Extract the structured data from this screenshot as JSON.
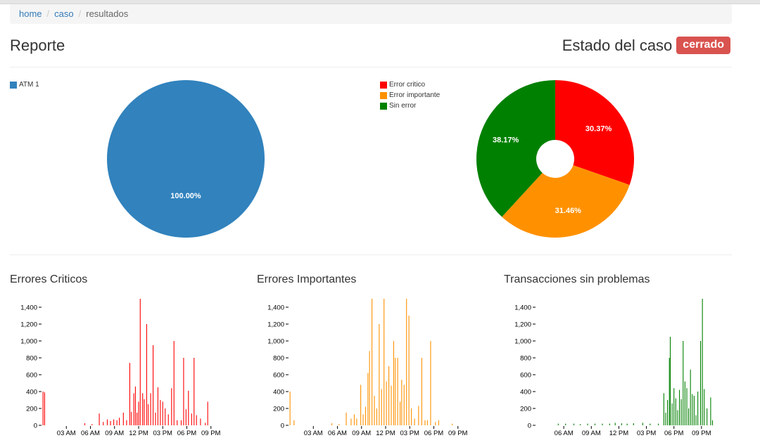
{
  "breadcrumb": {
    "home": "home",
    "caso": "caso",
    "current": "resultados",
    "separator": "/"
  },
  "header": {
    "title": "Reporte",
    "estado_label": "Estado del caso",
    "estado_value": "cerrado",
    "estado_color": "#d9534f"
  },
  "pie_atm": {
    "legend": [
      {
        "label": "ATM 1",
        "color": "#3182bd"
      }
    ]
  },
  "donut_errores": {
    "legend": [
      {
        "label": "Error critico",
        "color": "#ff0000"
      },
      {
        "label": "Error importante",
        "color": "#ff9100"
      },
      {
        "label": "Sin error",
        "color": "#008000"
      }
    ]
  },
  "sections": {
    "criticos": "Errores Criticos",
    "importantes": "Errores Importantes",
    "sin_problemas": "Transacciones sin problemas"
  },
  "chart_data": [
    {
      "type": "pie",
      "slices": [
        {
          "name": "ATM 1",
          "value": 100.0,
          "label": "100.00%",
          "color": "#3182bd"
        }
      ]
    },
    {
      "type": "pie",
      "donut": true,
      "slices": [
        {
          "name": "Error critico",
          "value": 30.37,
          "label": "30.37%",
          "color": "#ff0000"
        },
        {
          "name": "Error importante",
          "value": 31.46,
          "label": "31.46%",
          "color": "#ff9100"
        },
        {
          "name": "Sin error",
          "value": 38.17,
          "label": "38.17%",
          "color": "#008000"
        }
      ]
    },
    {
      "type": "bar",
      "title": "Errores Criticos",
      "color": "#ff0000",
      "ylim": [
        0,
        1400
      ],
      "yticks": [
        "0",
        "200",
        "400",
        "600",
        "800",
        "1,000",
        "1,200",
        "1,400"
      ],
      "xticks": [
        "03 AM",
        "06 AM",
        "09 AM",
        "12 PM",
        "03 PM",
        "06 PM",
        "09 PM"
      ],
      "xtick_hours": [
        3,
        6,
        9,
        12,
        15,
        18,
        21
      ],
      "xlim_hours": [
        0,
        24
      ],
      "points": [
        [
          0.1,
          400
        ],
        [
          0.3,
          390
        ],
        [
          5.3,
          25
        ],
        [
          6.2,
          15
        ],
        [
          7.1,
          140
        ],
        [
          7.6,
          40
        ],
        [
          8.1,
          70
        ],
        [
          8.5,
          50
        ],
        [
          8.9,
          70
        ],
        [
          9.3,
          60
        ],
        [
          9.6,
          90
        ],
        [
          10.1,
          150
        ],
        [
          10.5,
          60
        ],
        [
          10.9,
          740
        ],
        [
          11.1,
          160
        ],
        [
          11.4,
          380
        ],
        [
          11.6,
          460
        ],
        [
          11.8,
          150
        ],
        [
          12.0,
          280
        ],
        [
          12.2,
          1500
        ],
        [
          12.5,
          380
        ],
        [
          12.7,
          310
        ],
        [
          13.0,
          1200
        ],
        [
          13.2,
          250
        ],
        [
          13.5,
          380
        ],
        [
          13.8,
          950
        ],
        [
          14.1,
          150
        ],
        [
          14.4,
          450
        ],
        [
          14.7,
          300
        ],
        [
          15.0,
          280
        ],
        [
          15.3,
          200
        ],
        [
          15.7,
          130
        ],
        [
          16.1,
          440
        ],
        [
          16.4,
          1000
        ],
        [
          16.8,
          60
        ],
        [
          17.3,
          60
        ],
        [
          17.6,
          800
        ],
        [
          17.9,
          190
        ],
        [
          18.2,
          410
        ],
        [
          18.6,
          140
        ],
        [
          18.9,
          800
        ],
        [
          19.2,
          120
        ],
        [
          19.7,
          80
        ],
        [
          20.3,
          30
        ],
        [
          20.6,
          280
        ]
      ]
    },
    {
      "type": "bar",
      "title": "Errores Importantes",
      "color": "#ff9100",
      "ylim": [
        0,
        1400
      ],
      "yticks": [
        "0",
        "200",
        "400",
        "600",
        "800",
        "1,000",
        "1,200",
        "1,400"
      ],
      "xticks": [
        "03 AM",
        "06 AM",
        "09 AM",
        "12 PM",
        "03 PM",
        "06 PM",
        "09 PM"
      ],
      "xtick_hours": [
        3,
        6,
        9,
        12,
        15,
        18,
        21
      ],
      "xlim_hours": [
        0,
        24
      ],
      "points": [
        [
          0.1,
          400
        ],
        [
          0.6,
          60
        ],
        [
          5.3,
          25
        ],
        [
          6.2,
          15
        ],
        [
          7.1,
          150
        ],
        [
          7.7,
          80
        ],
        [
          8.1,
          130
        ],
        [
          8.4,
          80
        ],
        [
          8.9,
          480
        ],
        [
          9.2,
          130
        ],
        [
          9.5,
          220
        ],
        [
          9.8,
          620
        ],
        [
          10.0,
          880
        ],
        [
          10.3,
          1500
        ],
        [
          10.6,
          350
        ],
        [
          10.9,
          200
        ],
        [
          11.2,
          1200
        ],
        [
          11.5,
          430
        ],
        [
          11.8,
          1500
        ],
        [
          12.1,
          520
        ],
        [
          12.4,
          700
        ],
        [
          12.7,
          470
        ],
        [
          13.0,
          1000
        ],
        [
          13.2,
          800
        ],
        [
          13.5,
          800
        ],
        [
          13.8,
          280
        ],
        [
          14.0,
          540
        ],
        [
          14.3,
          480
        ],
        [
          14.6,
          1500
        ],
        [
          14.9,
          1300
        ],
        [
          15.2,
          200
        ],
        [
          15.6,
          80
        ],
        [
          16.1,
          230
        ],
        [
          16.5,
          800
        ],
        [
          16.9,
          60
        ],
        [
          17.2,
          60
        ],
        [
          17.6,
          1000
        ],
        [
          18.2,
          40
        ],
        [
          18.6,
          60
        ],
        [
          20.3,
          20
        ]
      ]
    },
    {
      "type": "bar",
      "title": "Transacciones sin problemas",
      "color": "#008000",
      "ylim": [
        0,
        1400
      ],
      "yticks": [
        "0",
        "200",
        "400",
        "600",
        "800",
        "1,000",
        "1,200",
        "1,400"
      ],
      "xticks": [
        "06 AM",
        "09 AM",
        "12 PM",
        "03 PM",
        "06 PM",
        "09 PM"
      ],
      "xtick_hours": [
        6,
        9,
        12,
        15,
        18,
        21
      ],
      "xlim_hours": [
        3,
        24
      ],
      "points": [
        [
          5.4,
          20
        ],
        [
          6.2,
          20
        ],
        [
          7.1,
          20
        ],
        [
          7.8,
          15
        ],
        [
          8.6,
          20
        ],
        [
          9.4,
          20
        ],
        [
          10.2,
          20
        ],
        [
          11.0,
          20
        ],
        [
          11.6,
          30
        ],
        [
          12.3,
          25
        ],
        [
          12.9,
          20
        ],
        [
          13.6,
          25
        ],
        [
          14.6,
          30
        ],
        [
          15.4,
          20
        ],
        [
          16.3,
          20
        ],
        [
          16.9,
          380
        ],
        [
          17.1,
          150
        ],
        [
          17.3,
          300
        ],
        [
          17.5,
          800
        ],
        [
          17.6,
          1050
        ],
        [
          17.8,
          260
        ],
        [
          18.0,
          440
        ],
        [
          18.2,
          320
        ],
        [
          18.4,
          180
        ],
        [
          18.6,
          420
        ],
        [
          18.8,
          310
        ],
        [
          19.0,
          1000
        ],
        [
          19.2,
          520
        ],
        [
          19.4,
          440
        ],
        [
          19.6,
          200
        ],
        [
          19.8,
          660
        ],
        [
          20.0,
          370
        ],
        [
          20.2,
          350
        ],
        [
          20.4,
          120
        ],
        [
          20.6,
          400
        ],
        [
          20.9,
          1000
        ],
        [
          21.1,
          1500
        ],
        [
          21.3,
          430
        ],
        [
          21.6,
          200
        ],
        [
          22.0,
          330
        ],
        [
          22.2,
          60
        ]
      ]
    }
  ]
}
